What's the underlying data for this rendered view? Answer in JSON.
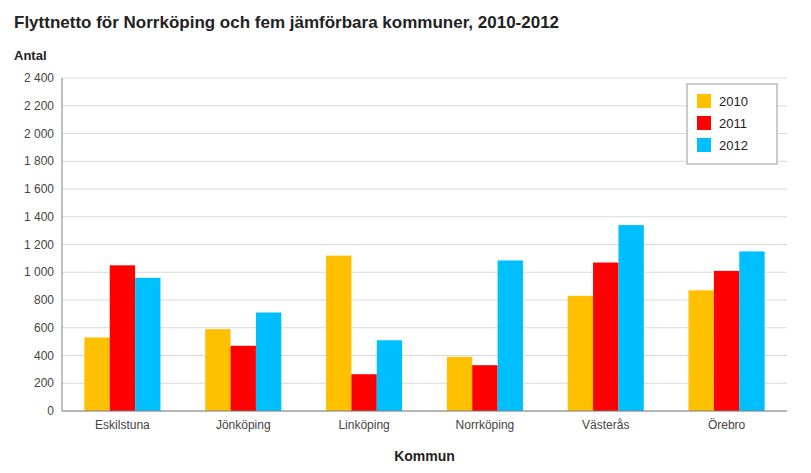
{
  "chart_data": {
    "type": "bar",
    "title": "Flyttnetto för Norrköping och fem jämförbara kommuner, 2010-2012",
    "y_label": "Antal",
    "x_label": "Kommun",
    "categories": [
      "Eskilstuna",
      "Jönköping",
      "Linköping",
      "Norrköping",
      "Västerås",
      "Örebro"
    ],
    "series": [
      {
        "name": "2010",
        "color": "#FFC000",
        "values": [
          530,
          590,
          1120,
          390,
          830,
          870
        ]
      },
      {
        "name": "2011",
        "color": "#FF0000",
        "values": [
          1050,
          470,
          265,
          330,
          1070,
          1010
        ]
      },
      {
        "name": "2012",
        "color": "#00BFFF",
        "values": [
          960,
          710,
          510,
          1085,
          1340,
          1150
        ]
      }
    ],
    "ylim": [
      0,
      2400
    ],
    "yticks": [
      0,
      200,
      400,
      600,
      800,
      {
        "value": 1000,
        "label": "1 000"
      },
      {
        "value": 1200,
        "label": "1 200"
      },
      {
        "value": 1400,
        "label": "1 400"
      },
      {
        "value": 1600,
        "label": "1 600"
      },
      {
        "value": 1800,
        "label": "1 800"
      },
      {
        "value": 2000,
        "label": "2 000"
      },
      {
        "value": 2200,
        "label": "2 200"
      },
      {
        "value": 2400,
        "label": "2 400"
      }
    ],
    "grid": true,
    "legend": "upper right"
  }
}
